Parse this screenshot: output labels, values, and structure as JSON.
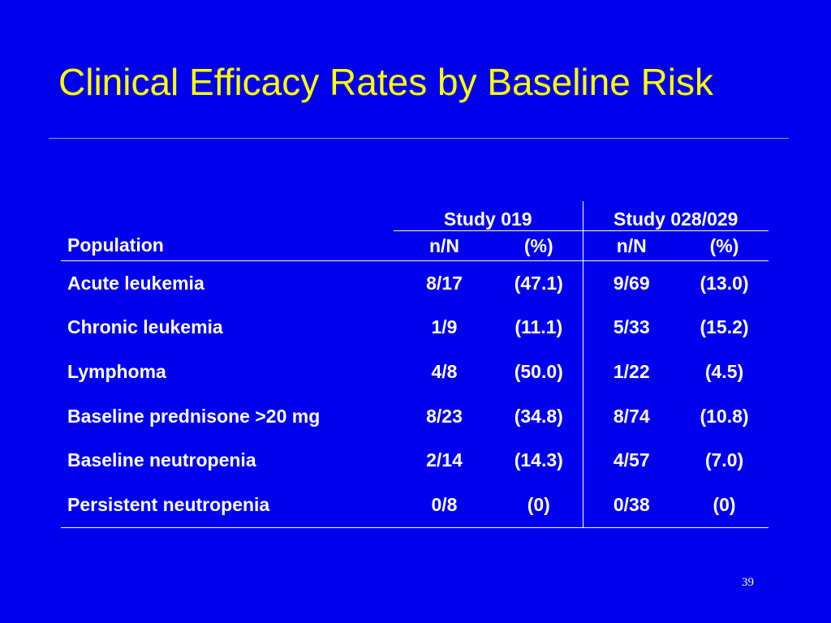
{
  "slide": {
    "title": "Clinical Efficacy Rates by Baseline Risk",
    "page_number": "39",
    "colors": {
      "background": "#0000ee",
      "title": "#ffff00",
      "text": "#ffffff"
    }
  },
  "table": {
    "group_headers": [
      "Study 019",
      "Study 028/029"
    ],
    "column_headers": [
      "Population",
      "n/N",
      "(%)",
      "n/N",
      "(%)"
    ],
    "rows": [
      {
        "population": "Acute leukemia",
        "s019_n": "8/17",
        "s019_pct": "(47.1)",
        "s028_n": "9/69",
        "s028_pct": "(13.0)"
      },
      {
        "population": "Chronic leukemia",
        "s019_n": "1/9",
        "s019_pct": "(11.1)",
        "s028_n": "5/33",
        "s028_pct": "(15.2)"
      },
      {
        "population": "Lymphoma",
        "s019_n": "4/8",
        "s019_pct": "(50.0)",
        "s028_n": "1/22",
        "s028_pct": "(4.5)"
      },
      {
        "population": "Baseline prednisone >20 mg",
        "s019_n": "8/23",
        "s019_pct": "(34.8)",
        "s028_n": "8/74",
        "s028_pct": "(10.8)"
      },
      {
        "population": "Baseline neutropenia",
        "s019_n": "2/14",
        "s019_pct": "(14.3)",
        "s028_n": "4/57",
        "s028_pct": "(7.0)"
      },
      {
        "population": "Persistent neutropenia",
        "s019_n": "0/8",
        "s019_pct": "(0)",
        "s028_n": "0/38",
        "s028_pct": "(0)"
      }
    ]
  }
}
